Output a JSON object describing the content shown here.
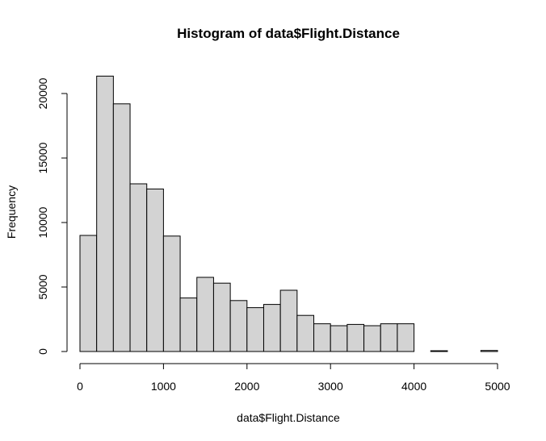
{
  "chart_data": {
    "type": "bar",
    "title": "Histogram of data$Flight.Distance",
    "xlabel": "data$Flight.Distance",
    "ylabel": "Frequency",
    "bin_width": 200,
    "bins": [
      {
        "start": 0,
        "end": 200,
        "count": 9000
      },
      {
        "start": 200,
        "end": 400,
        "count": 21350
      },
      {
        "start": 400,
        "end": 600,
        "count": 19200
      },
      {
        "start": 600,
        "end": 800,
        "count": 13000
      },
      {
        "start": 800,
        "end": 1000,
        "count": 12600
      },
      {
        "start": 1000,
        "end": 1200,
        "count": 8950
      },
      {
        "start": 1200,
        "end": 1400,
        "count": 4150
      },
      {
        "start": 1400,
        "end": 1600,
        "count": 5750
      },
      {
        "start": 1600,
        "end": 1800,
        "count": 5300
      },
      {
        "start": 1800,
        "end": 2000,
        "count": 3950
      },
      {
        "start": 2000,
        "end": 2200,
        "count": 3400
      },
      {
        "start": 2200,
        "end": 2400,
        "count": 3650
      },
      {
        "start": 2400,
        "end": 2600,
        "count": 4750
      },
      {
        "start": 2600,
        "end": 2800,
        "count": 2800
      },
      {
        "start": 2800,
        "end": 3000,
        "count": 2150
      },
      {
        "start": 3000,
        "end": 3200,
        "count": 2000
      },
      {
        "start": 3200,
        "end": 3400,
        "count": 2100
      },
      {
        "start": 3400,
        "end": 3600,
        "count": 2000
      },
      {
        "start": 3600,
        "end": 3800,
        "count": 2150
      },
      {
        "start": 3800,
        "end": 4000,
        "count": 2150
      },
      {
        "start": 4000,
        "end": 4200,
        "count": 0
      },
      {
        "start": 4200,
        "end": 4400,
        "count": 60
      },
      {
        "start": 4400,
        "end": 4600,
        "count": 0
      },
      {
        "start": 4600,
        "end": 4800,
        "count": 0
      },
      {
        "start": 4800,
        "end": 5000,
        "count": 80
      }
    ],
    "xlim": [
      0,
      5000
    ],
    "ylim": [
      0,
      21350
    ],
    "x_ticks": [
      0,
      1000,
      2000,
      3000,
      4000,
      5000
    ],
    "x_tick_labels": [
      "0",
      "1000",
      "2000",
      "3000",
      "4000",
      "5000"
    ],
    "y_ticks": [
      0,
      5000,
      10000,
      15000,
      20000
    ],
    "y_tick_labels": [
      "0",
      "5000",
      "10000",
      "15000",
      "20000"
    ],
    "bar_fill": "#d3d3d3",
    "grid": false,
    "legend": "none"
  }
}
